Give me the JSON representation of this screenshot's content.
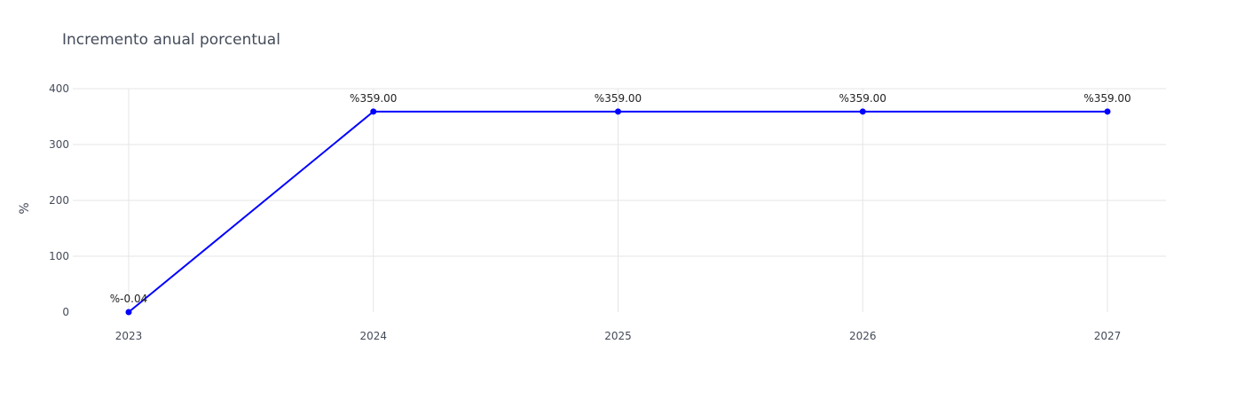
{
  "chart_data": {
    "type": "line",
    "title": "Incremento anual porcentual",
    "xlabel": "",
    "ylabel": "%",
    "x": [
      "2023",
      "2024",
      "2025",
      "2026",
      "2027"
    ],
    "y_ticks": [
      "0",
      "100",
      "200",
      "300",
      "400"
    ],
    "ylim": [
      0,
      400
    ],
    "series": [
      {
        "values": [
          -0.04,
          359.0,
          359.0,
          359.0,
          359.0
        ],
        "labels": [
          "%-0.04",
          "%359.00",
          "%359.00",
          "%359.00",
          "%359.00"
        ],
        "color": "#0000ff"
      }
    ],
    "grid": true,
    "legend": "none",
    "markers": true
  }
}
